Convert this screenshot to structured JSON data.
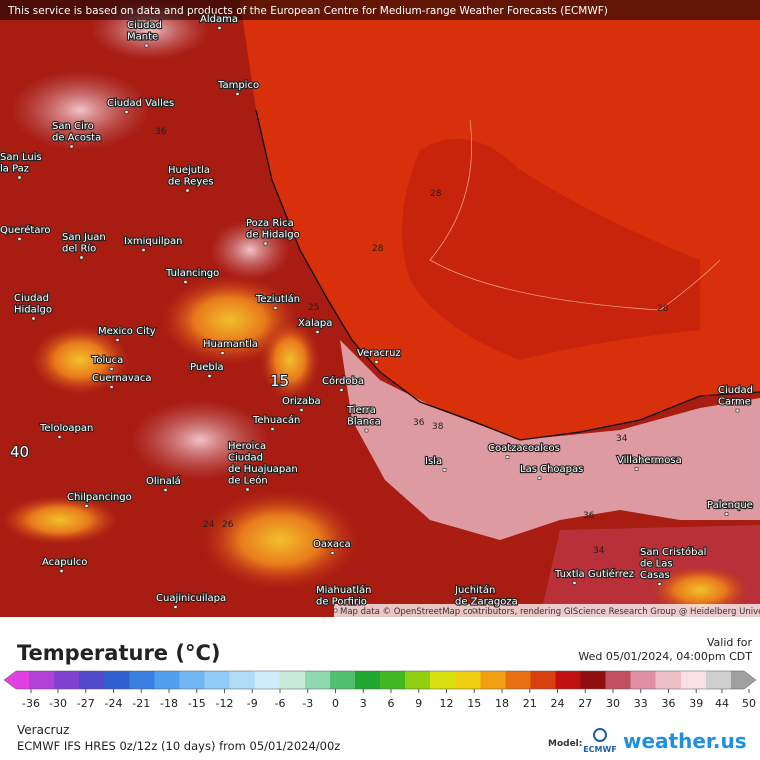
{
  "banner": "This service is based on data and products of the European Centre for Medium-range Weather Forecasts (ECMWF)",
  "map": {
    "cities": [
      {
        "lines": [
          "Aldama"
        ]
      },
      {
        "lines": [
          "Ciudad",
          "Mante"
        ]
      },
      {
        "lines": [
          "Tampico"
        ]
      },
      {
        "lines": [
          "Ciudad Valles"
        ]
      },
      {
        "lines": [
          "San Ciro",
          "de Acosta"
        ]
      },
      {
        "lines": [
          "Huejutla",
          "de Reyes"
        ]
      },
      {
        "lines": [
          "San Luis",
          "la Paz"
        ]
      },
      {
        "lines": [
          "Poza Rica",
          "de Hidalgo"
        ]
      },
      {
        "lines": [
          "Querétaro"
        ]
      },
      {
        "lines": [
          "San Juan",
          "del Río"
        ]
      },
      {
        "lines": [
          "Ixmiquilpan"
        ]
      },
      {
        "lines": [
          "Tulancingo"
        ]
      },
      {
        "lines": [
          "Ciudad",
          "Hidalgo"
        ]
      },
      {
        "lines": [
          "Teziutlán"
        ]
      },
      {
        "lines": [
          "Xalapa"
        ]
      },
      {
        "lines": [
          "Mexico City"
        ]
      },
      {
        "lines": [
          "Huamantla"
        ]
      },
      {
        "lines": [
          "Veracruz"
        ]
      },
      {
        "lines": [
          "Toluca"
        ]
      },
      {
        "lines": [
          "Puebla"
        ]
      },
      {
        "lines": [
          "Córdoba"
        ]
      },
      {
        "lines": [
          "Cuernavaca"
        ]
      },
      {
        "lines": [
          "Orizaba"
        ]
      },
      {
        "lines": [
          "Tierra",
          "Blanca"
        ]
      },
      {
        "lines": [
          "Tehuacán"
        ]
      },
      {
        "lines": [
          "Teloloapan"
        ]
      },
      {
        "lines": [
          "Coatzacoalcos"
        ]
      },
      {
        "lines": [
          "Heroica",
          "Ciudad",
          "de Huajuapan",
          "de León"
        ]
      },
      {
        "lines": [
          "Isla"
        ]
      },
      {
        "lines": [
          "Villahermosa"
        ]
      },
      {
        "lines": [
          "Las Choapas"
        ]
      },
      {
        "lines": [
          "Olinalá"
        ]
      },
      {
        "lines": [
          "Chilpancingo"
        ]
      },
      {
        "lines": [
          "Palenque"
        ]
      },
      {
        "lines": [
          "Oaxaca"
        ]
      },
      {
        "lines": [
          "San Cristóbal",
          "de Las",
          "Casas"
        ]
      },
      {
        "lines": [
          "Acapulco"
        ]
      },
      {
        "lines": [
          "Tuxtla Gutiérrez"
        ]
      },
      {
        "lines": [
          "Miahuatlán",
          "de Porfirio"
        ]
      },
      {
        "lines": [
          "Juchitán",
          "de Zaragoza"
        ]
      },
      {
        "lines": [
          "Cuajinicuilapa"
        ]
      },
      {
        "lines": [
          "Ciudad",
          "Carme"
        ]
      }
    ],
    "contour_labels": [
      "36",
      "28",
      "28",
      "28",
      "36",
      "38",
      "34",
      "36",
      "34",
      "40",
      "15",
      "24",
      "26",
      "25"
    ],
    "credit": "Map data © OpenStreetMap contributors, rendering GIScience Research Group @ Heidelberg University"
  },
  "legend": {
    "title": "Temperature (°C)",
    "valid_label": "Valid for",
    "valid_time": "Wed 05/01/2024, 04:00pm CDT",
    "ticks": [
      -36,
      -30,
      -27,
      -24,
      -21,
      -18,
      -15,
      -12,
      -9,
      -6,
      -3,
      0,
      3,
      6,
      9,
      12,
      15,
      18,
      21,
      24,
      27,
      30,
      33,
      36,
      39,
      44,
      50
    ]
  },
  "footer": {
    "location": "Veracruz",
    "model_run": "ECMWF IFS HRES 0z/12z (10 days) from  05/01/2024/00z",
    "model_label": "Model:",
    "ecmwf": "ECMWF",
    "brand": "weather.us"
  }
}
